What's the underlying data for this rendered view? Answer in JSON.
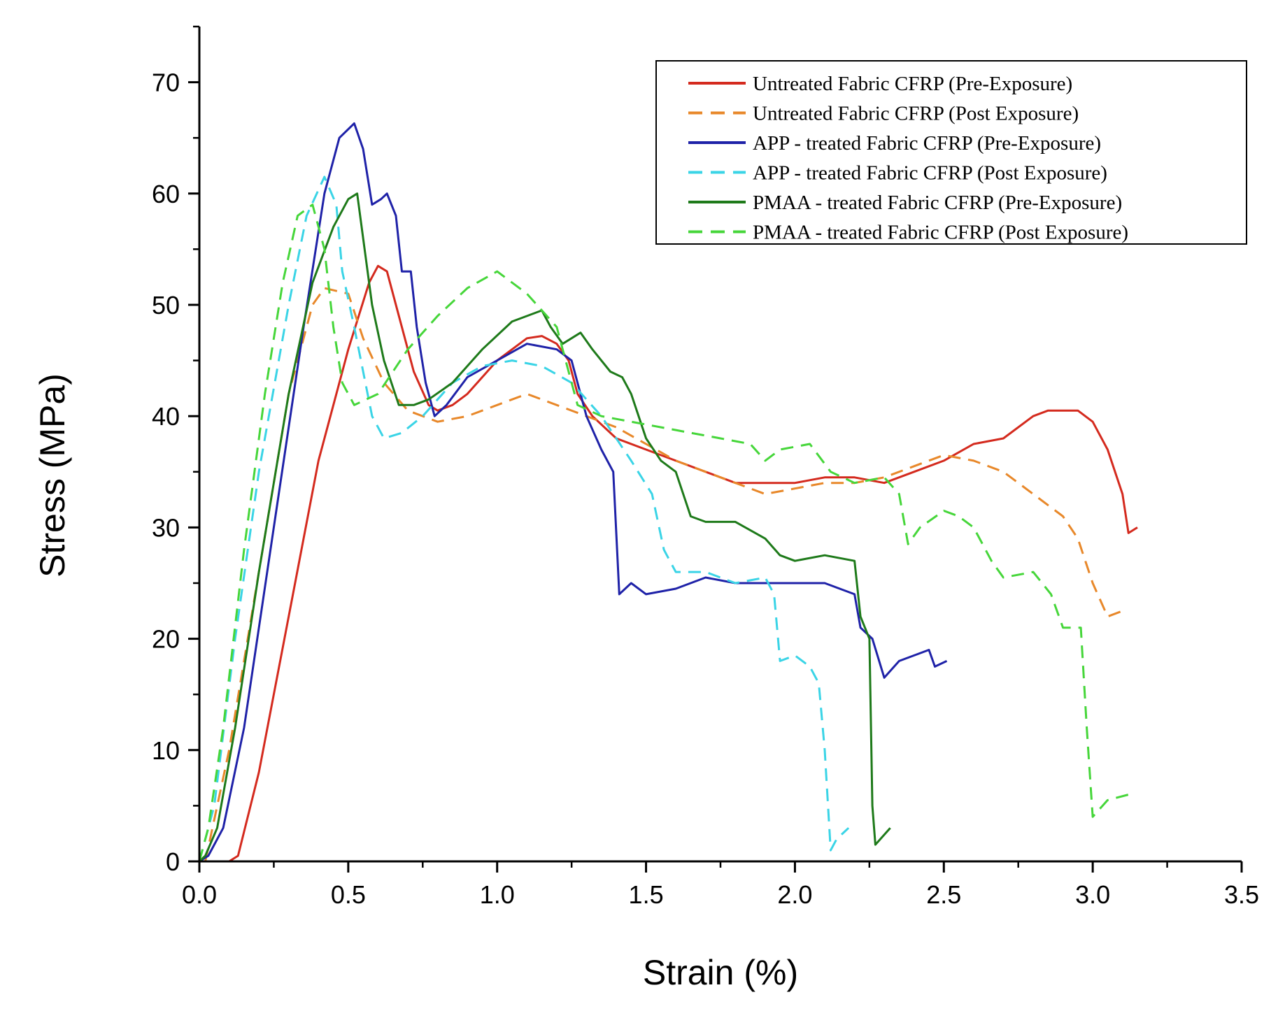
{
  "chart_data": {
    "type": "line",
    "xlabel": "Strain (%)",
    "ylabel": "Stress (MPa)",
    "xlim": [
      0,
      3.5
    ],
    "ylim": [
      0,
      75
    ],
    "x_ticks": [
      "0.0",
      "0.5",
      "1.0",
      "1.5",
      "2.0",
      "2.5",
      "3.0",
      "3.5"
    ],
    "y_ticks": [
      "0",
      "10",
      "20",
      "30",
      "40",
      "50",
      "60",
      "70"
    ],
    "grid": false,
    "legend_position": "top-right",
    "series": [
      {
        "name": "Untreated Fabric CFRP (Pre-Exposure)",
        "color": "#d42a1e",
        "dash": "solid",
        "points": [
          [
            0.1,
            0
          ],
          [
            0.13,
            0.5
          ],
          [
            0.2,
            8
          ],
          [
            0.3,
            22
          ],
          [
            0.4,
            36
          ],
          [
            0.5,
            46
          ],
          [
            0.57,
            52
          ],
          [
            0.6,
            53.5
          ],
          [
            0.63,
            53
          ],
          [
            0.68,
            48
          ],
          [
            0.72,
            44
          ],
          [
            0.77,
            41
          ],
          [
            0.8,
            40.5
          ],
          [
            0.85,
            41
          ],
          [
            0.9,
            42
          ],
          [
            1.0,
            45
          ],
          [
            1.1,
            47
          ],
          [
            1.15,
            47.2
          ],
          [
            1.2,
            46.5
          ],
          [
            1.24,
            45
          ],
          [
            1.27,
            42
          ],
          [
            1.32,
            40
          ],
          [
            1.4,
            38
          ],
          [
            1.5,
            37
          ],
          [
            1.6,
            36
          ],
          [
            1.7,
            35
          ],
          [
            1.8,
            34
          ],
          [
            1.9,
            34
          ],
          [
            2.0,
            34
          ],
          [
            2.1,
            34.5
          ],
          [
            2.2,
            34.5
          ],
          [
            2.3,
            34
          ],
          [
            2.4,
            35
          ],
          [
            2.5,
            36
          ],
          [
            2.6,
            37.5
          ],
          [
            2.7,
            38
          ],
          [
            2.8,
            40
          ],
          [
            2.85,
            40.5
          ],
          [
            2.95,
            40.5
          ],
          [
            3.0,
            39.5
          ],
          [
            3.05,
            37
          ],
          [
            3.1,
            33
          ],
          [
            3.12,
            29.5
          ],
          [
            3.15,
            30
          ]
        ]
      },
      {
        "name": "Untreated Fabric CFRP (Post Exposure)",
        "color": "#e8882a",
        "dash": "dashed",
        "points": [
          [
            0.02,
            0
          ],
          [
            0.1,
            10
          ],
          [
            0.2,
            26
          ],
          [
            0.3,
            42
          ],
          [
            0.38,
            50
          ],
          [
            0.42,
            51.5
          ],
          [
            0.5,
            51
          ],
          [
            0.55,
            47
          ],
          [
            0.62,
            43
          ],
          [
            0.7,
            40.5
          ],
          [
            0.8,
            39.5
          ],
          [
            0.9,
            40
          ],
          [
            1.0,
            41
          ],
          [
            1.1,
            42
          ],
          [
            1.2,
            41
          ],
          [
            1.3,
            40
          ],
          [
            1.4,
            39
          ],
          [
            1.5,
            37.5
          ],
          [
            1.6,
            36
          ],
          [
            1.7,
            35
          ],
          [
            1.8,
            34
          ],
          [
            1.9,
            33
          ],
          [
            2.0,
            33.5
          ],
          [
            2.1,
            34
          ],
          [
            2.2,
            34
          ],
          [
            2.3,
            34.5
          ],
          [
            2.4,
            35.5
          ],
          [
            2.5,
            36.5
          ],
          [
            2.6,
            36
          ],
          [
            2.7,
            35
          ],
          [
            2.8,
            33
          ],
          [
            2.9,
            31
          ],
          [
            2.95,
            29
          ],
          [
            3.0,
            25
          ],
          [
            3.05,
            22
          ],
          [
            3.1,
            22.5
          ]
        ]
      },
      {
        "name": "APP - treated Fabric CFRP (Pre-Exposure)",
        "color": "#1f22a8",
        "dash": "solid",
        "points": [
          [
            0,
            0
          ],
          [
            0.03,
            0.5
          ],
          [
            0.08,
            3
          ],
          [
            0.15,
            12
          ],
          [
            0.25,
            30
          ],
          [
            0.35,
            48
          ],
          [
            0.42,
            60
          ],
          [
            0.47,
            65
          ],
          [
            0.52,
            66.3
          ],
          [
            0.55,
            64
          ],
          [
            0.58,
            59
          ],
          [
            0.61,
            59.5
          ],
          [
            0.63,
            60
          ],
          [
            0.66,
            58
          ],
          [
            0.68,
            53
          ],
          [
            0.71,
            53
          ],
          [
            0.73,
            48
          ],
          [
            0.76,
            43
          ],
          [
            0.79,
            40
          ],
          [
            0.83,
            41
          ],
          [
            0.9,
            43.5
          ],
          [
            1.0,
            45
          ],
          [
            1.1,
            46.5
          ],
          [
            1.2,
            46
          ],
          [
            1.25,
            45
          ],
          [
            1.3,
            40
          ],
          [
            1.35,
            37
          ],
          [
            1.39,
            35
          ],
          [
            1.41,
            24
          ],
          [
            1.45,
            25
          ],
          [
            1.5,
            24
          ],
          [
            1.6,
            24.5
          ],
          [
            1.7,
            25.5
          ],
          [
            1.8,
            25
          ],
          [
            1.9,
            25
          ],
          [
            2.0,
            25
          ],
          [
            2.1,
            25
          ],
          [
            2.2,
            24
          ],
          [
            2.22,
            21
          ],
          [
            2.26,
            20
          ],
          [
            2.3,
            16.5
          ],
          [
            2.35,
            18
          ],
          [
            2.45,
            19
          ],
          [
            2.47,
            17.5
          ],
          [
            2.51,
            18
          ]
        ]
      },
      {
        "name": "APP - treated Fabric CFRP (Post Exposure)",
        "color": "#3ad4e6",
        "dash": "dashed",
        "points": [
          [
            0,
            0
          ],
          [
            0.05,
            5
          ],
          [
            0.12,
            20
          ],
          [
            0.2,
            35
          ],
          [
            0.3,
            50
          ],
          [
            0.36,
            58
          ],
          [
            0.42,
            61.5
          ],
          [
            0.46,
            59
          ],
          [
            0.48,
            53
          ],
          [
            0.52,
            48
          ],
          [
            0.58,
            40
          ],
          [
            0.62,
            38
          ],
          [
            0.68,
            38.5
          ],
          [
            0.75,
            40
          ],
          [
            0.85,
            43
          ],
          [
            0.95,
            44.5
          ],
          [
            1.05,
            45
          ],
          [
            1.15,
            44.5
          ],
          [
            1.25,
            43
          ],
          [
            1.35,
            40
          ],
          [
            1.45,
            36
          ],
          [
            1.52,
            33
          ],
          [
            1.56,
            28
          ],
          [
            1.6,
            26
          ],
          [
            1.7,
            26
          ],
          [
            1.8,
            25
          ],
          [
            1.9,
            25.5
          ],
          [
            1.93,
            24
          ],
          [
            1.95,
            18
          ],
          [
            2.0,
            18.5
          ],
          [
            2.05,
            17.5
          ],
          [
            2.08,
            16
          ],
          [
            2.1,
            10
          ],
          [
            2.12,
            1
          ],
          [
            2.14,
            2
          ],
          [
            2.18,
            3
          ]
        ]
      },
      {
        "name": "PMAA - treated Fabric CFRP (Pre-Exposure)",
        "color": "#1e7a1a",
        "dash": "solid",
        "points": [
          [
            0,
            0
          ],
          [
            0.02,
            0.5
          ],
          [
            0.06,
            3
          ],
          [
            0.12,
            12
          ],
          [
            0.2,
            26
          ],
          [
            0.3,
            42
          ],
          [
            0.38,
            52
          ],
          [
            0.45,
            57
          ],
          [
            0.5,
            59.5
          ],
          [
            0.53,
            60
          ],
          [
            0.55,
            56
          ],
          [
            0.58,
            50
          ],
          [
            0.62,
            45
          ],
          [
            0.67,
            41
          ],
          [
            0.72,
            41
          ],
          [
            0.77,
            41.5
          ],
          [
            0.85,
            43
          ],
          [
            0.95,
            46
          ],
          [
            1.05,
            48.5
          ],
          [
            1.15,
            49.5
          ],
          [
            1.18,
            48
          ],
          [
            1.22,
            46.5
          ],
          [
            1.28,
            47.5
          ],
          [
            1.32,
            46
          ],
          [
            1.38,
            44
          ],
          [
            1.42,
            43.5
          ],
          [
            1.45,
            42
          ],
          [
            1.5,
            38
          ],
          [
            1.55,
            36
          ],
          [
            1.6,
            35
          ],
          [
            1.65,
            31
          ],
          [
            1.7,
            30.5
          ],
          [
            1.8,
            30.5
          ],
          [
            1.9,
            29
          ],
          [
            1.95,
            27.5
          ],
          [
            2.0,
            27
          ],
          [
            2.1,
            27.5
          ],
          [
            2.2,
            27
          ],
          [
            2.22,
            22
          ],
          [
            2.25,
            20
          ],
          [
            2.26,
            5
          ],
          [
            2.27,
            1.5
          ],
          [
            2.32,
            3
          ]
        ]
      },
      {
        "name": "PMAA - treated Fabric CFRP (Post Exposure)",
        "color": "#46d63a",
        "dash": "dashed",
        "points": [
          [
            0,
            0
          ],
          [
            0.03,
            3
          ],
          [
            0.08,
            12
          ],
          [
            0.15,
            28
          ],
          [
            0.22,
            42
          ],
          [
            0.28,
            52
          ],
          [
            0.33,
            58
          ],
          [
            0.38,
            59
          ],
          [
            0.42,
            55
          ],
          [
            0.45,
            48
          ],
          [
            0.48,
            43
          ],
          [
            0.52,
            41
          ],
          [
            0.6,
            42
          ],
          [
            0.7,
            46
          ],
          [
            0.8,
            49
          ],
          [
            0.9,
            51.5
          ],
          [
            1.0,
            53
          ],
          [
            1.1,
            51
          ],
          [
            1.2,
            48
          ],
          [
            1.23,
            45
          ],
          [
            1.27,
            41
          ],
          [
            1.35,
            40
          ],
          [
            1.45,
            39.5
          ],
          [
            1.55,
            39
          ],
          [
            1.65,
            38.5
          ],
          [
            1.75,
            38
          ],
          [
            1.85,
            37.5
          ],
          [
            1.9,
            36
          ],
          [
            1.95,
            37
          ],
          [
            2.05,
            37.5
          ],
          [
            2.12,
            35
          ],
          [
            2.2,
            34
          ],
          [
            2.3,
            34.5
          ],
          [
            2.35,
            33
          ],
          [
            2.38,
            28.5
          ],
          [
            2.42,
            30
          ],
          [
            2.5,
            31.5
          ],
          [
            2.55,
            31
          ],
          [
            2.6,
            30
          ],
          [
            2.66,
            27
          ],
          [
            2.7,
            25.5
          ],
          [
            2.8,
            26
          ],
          [
            2.86,
            24
          ],
          [
            2.9,
            21
          ],
          [
            2.96,
            21
          ],
          [
            2.98,
            12
          ],
          [
            3.0,
            4
          ],
          [
            3.05,
            5.5
          ],
          [
            3.12,
            6
          ]
        ]
      }
    ],
    "legend": [
      {
        "label": "Untreated Fabric CFRP (Pre-Exposure)",
        "color": "#d42a1e",
        "dash": "solid"
      },
      {
        "label": "Untreated Fabric CFRP (Post Exposure)",
        "color": "#e8882a",
        "dash": "dashed"
      },
      {
        "label": "APP - treated Fabric CFRP (Pre-Exposure)",
        "color": "#1f22a8",
        "dash": "solid"
      },
      {
        "label": "APP - treated Fabric CFRP (Post Exposure)",
        "color": "#3ad4e6",
        "dash": "dashed"
      },
      {
        "label": "PMAA - treated Fabric CFRP (Pre-Exposure)",
        "color": "#1e7a1a",
        "dash": "solid"
      },
      {
        "label": "PMAA - treated Fabric CFRP (Post Exposure)",
        "color": "#46d63a",
        "dash": "dashed"
      }
    ]
  }
}
